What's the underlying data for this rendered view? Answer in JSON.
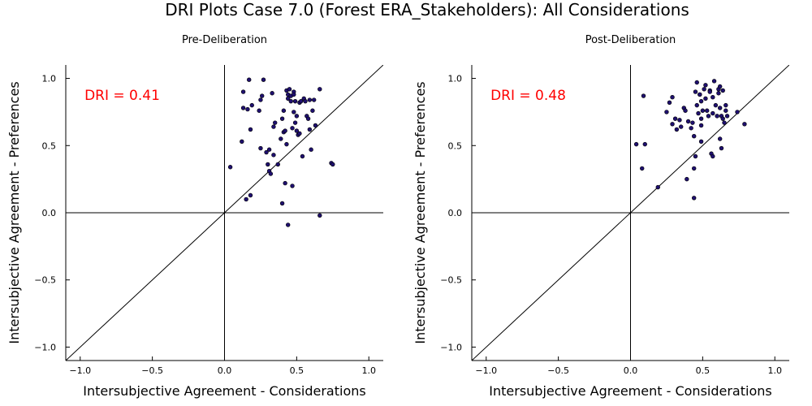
{
  "figure": {
    "title": "DRI Plots Case 7.0 (Forest ERA_Stakeholders): All Considerations"
  },
  "chart_data": [
    {
      "type": "scatter",
      "title": "Pre-Deliberation",
      "xlabel": "Intersubjective Agreement - Considerations",
      "ylabel": "Intersubjective Agreement - Preferences",
      "xlim": [
        -1.1,
        1.1
      ],
      "ylim": [
        -1.1,
        1.1
      ],
      "xticks": [
        -1.0,
        -0.5,
        0.0,
        0.5,
        1.0
      ],
      "yticks": [
        -1.0,
        -0.5,
        0.0,
        0.5,
        1.0
      ],
      "xtick_labels": [
        "−1.0",
        "−0.5",
        "0.0",
        "0.5",
        "1.0"
      ],
      "ytick_labels": [
        "−1.0",
        "−0.5",
        "0.0",
        "0.5",
        "1.0"
      ],
      "grid": false,
      "annotation": {
        "text": "DRI = 0.41",
        "x": -0.97,
        "y": 0.875,
        "color": "#ff0000"
      },
      "reference_lines": [
        "y = x",
        "x = 0",
        "y = 0"
      ],
      "marker_color": "#1f1070",
      "points": [
        [
          0.04,
          0.34
        ],
        [
          0.12,
          0.53
        ],
        [
          0.13,
          0.9
        ],
        [
          0.13,
          0.78
        ],
        [
          0.16,
          0.77
        ],
        [
          0.17,
          0.99
        ],
        [
          0.18,
          0.62
        ],
        [
          0.19,
          0.8
        ],
        [
          0.15,
          0.1
        ],
        [
          0.18,
          0.13
        ],
        [
          0.24,
          0.76
        ],
        [
          0.25,
          0.84
        ],
        [
          0.25,
          0.48
        ],
        [
          0.26,
          0.87
        ],
        [
          0.27,
          0.99
        ],
        [
          0.29,
          0.45
        ],
        [
          0.3,
          0.36
        ],
        [
          0.31,
          0.47
        ],
        [
          0.31,
          0.31
        ],
        [
          0.32,
          0.29
        ],
        [
          0.33,
          0.89
        ],
        [
          0.34,
          0.64
        ],
        [
          0.35,
          0.67
        ],
        [
          0.34,
          0.43
        ],
        [
          0.37,
          0.36
        ],
        [
          0.39,
          0.55
        ],
        [
          0.4,
          0.7
        ],
        [
          0.41,
          0.6
        ],
        [
          0.41,
          0.76
        ],
        [
          0.42,
          0.61
        ],
        [
          0.43,
          0.51
        ],
        [
          0.43,
          0.91
        ],
        [
          0.44,
          0.88
        ],
        [
          0.45,
          0.92
        ],
        [
          0.46,
          0.87
        ],
        [
          0.46,
          0.83
        ],
        [
          0.47,
          0.63
        ],
        [
          0.48,
          0.9
        ],
        [
          0.48,
          0.88
        ],
        [
          0.48,
          0.75
        ],
        [
          0.49,
          0.67
        ],
        [
          0.49,
          0.83
        ],
        [
          0.5,
          0.72
        ],
        [
          0.5,
          0.61
        ],
        [
          0.51,
          0.58
        ],
        [
          0.52,
          0.82
        ],
        [
          0.52,
          0.59
        ],
        [
          0.53,
          0.83
        ],
        [
          0.54,
          0.42
        ],
        [
          0.55,
          0.85
        ],
        [
          0.56,
          0.83
        ],
        [
          0.57,
          0.72
        ],
        [
          0.58,
          0.7
        ],
        [
          0.59,
          0.84
        ],
        [
          0.59,
          0.62
        ],
        [
          0.6,
          0.47
        ],
        [
          0.61,
          0.76
        ],
        [
          0.62,
          0.84
        ],
        [
          0.63,
          0.65
        ],
        [
          0.66,
          0.92
        ],
        [
          0.4,
          0.07
        ],
        [
          0.42,
          0.22
        ],
        [
          0.44,
          -0.09
        ],
        [
          0.47,
          0.2
        ],
        [
          0.66,
          -0.02
        ],
        [
          0.74,
          0.37
        ],
        [
          0.75,
          0.36
        ],
        [
          0.44,
          0.85
        ]
      ]
    },
    {
      "type": "scatter",
      "title": "Post-Deliberation",
      "xlabel": "Intersubjective Agreement - Considerations",
      "ylabel": "Intersubjective Agreement - Preferences",
      "xlim": [
        -1.1,
        1.1
      ],
      "ylim": [
        -1.1,
        1.1
      ],
      "xticks": [
        -1.0,
        -0.5,
        0.0,
        0.5,
        1.0
      ],
      "yticks": [
        -1.0,
        -0.5,
        0.0,
        0.5,
        1.0
      ],
      "xtick_labels": [
        "−1.0",
        "−0.5",
        "0.0",
        "0.5",
        "1.0"
      ],
      "ytick_labels": [
        "−1.0",
        "−0.5",
        "0.0",
        "0.5",
        "1.0"
      ],
      "grid": false,
      "annotation": {
        "text": "DRI = 0.48",
        "x": -0.97,
        "y": 0.875,
        "color": "#ff0000"
      },
      "reference_lines": [
        "y = x",
        "x = 0",
        "y = 0"
      ],
      "marker_color": "#1f1070",
      "points": [
        [
          0.04,
          0.51
        ],
        [
          0.08,
          0.33
        ],
        [
          0.09,
          0.87
        ],
        [
          0.1,
          0.51
        ],
        [
          0.19,
          0.19
        ],
        [
          0.25,
          0.75
        ],
        [
          0.27,
          0.82
        ],
        [
          0.29,
          0.86
        ],
        [
          0.29,
          0.66
        ],
        [
          0.31,
          0.7
        ],
        [
          0.32,
          0.62
        ],
        [
          0.34,
          0.69
        ],
        [
          0.35,
          0.64
        ],
        [
          0.37,
          0.78
        ],
        [
          0.38,
          0.76
        ],
        [
          0.39,
          0.25
        ],
        [
          0.4,
          0.68
        ],
        [
          0.42,
          0.63
        ],
        [
          0.43,
          0.67
        ],
        [
          0.44,
          0.57
        ],
        [
          0.44,
          0.11
        ],
        [
          0.44,
          0.33
        ],
        [
          0.45,
          0.9
        ],
        [
          0.46,
          0.97
        ],
        [
          0.46,
          0.8
        ],
        [
          0.47,
          0.74
        ],
        [
          0.48,
          0.88
        ],
        [
          0.49,
          0.83
        ],
        [
          0.49,
          0.7
        ],
        [
          0.49,
          0.65
        ],
        [
          0.49,
          0.53
        ],
        [
          0.5,
          0.76
        ],
        [
          0.51,
          0.92
        ],
        [
          0.52,
          0.95
        ],
        [
          0.52,
          0.85
        ],
        [
          0.53,
          0.76
        ],
        [
          0.54,
          0.72
        ],
        [
          0.55,
          0.91
        ],
        [
          0.56,
          0.44
        ],
        [
          0.57,
          0.86
        ],
        [
          0.57,
          0.74
        ],
        [
          0.58,
          0.98
        ],
        [
          0.59,
          0.8
        ],
        [
          0.6,
          0.72
        ],
        [
          0.61,
          0.92
        ],
        [
          0.61,
          0.89
        ],
        [
          0.62,
          0.94
        ],
        [
          0.62,
          0.78
        ],
        [
          0.63,
          0.72
        ],
        [
          0.64,
          0.91
        ],
        [
          0.64,
          0.7
        ],
        [
          0.65,
          0.67
        ],
        [
          0.66,
          0.8
        ],
        [
          0.66,
          0.76
        ],
        [
          0.67,
          0.72
        ],
        [
          0.74,
          0.75
        ],
        [
          0.79,
          0.66
        ],
        [
          0.62,
          0.55
        ],
        [
          0.63,
          0.48
        ],
        [
          0.57,
          0.42
        ],
        [
          0.45,
          0.42
        ],
        [
          0.55,
          0.9
        ],
        [
          0.48,
          0.88
        ]
      ]
    }
  ]
}
